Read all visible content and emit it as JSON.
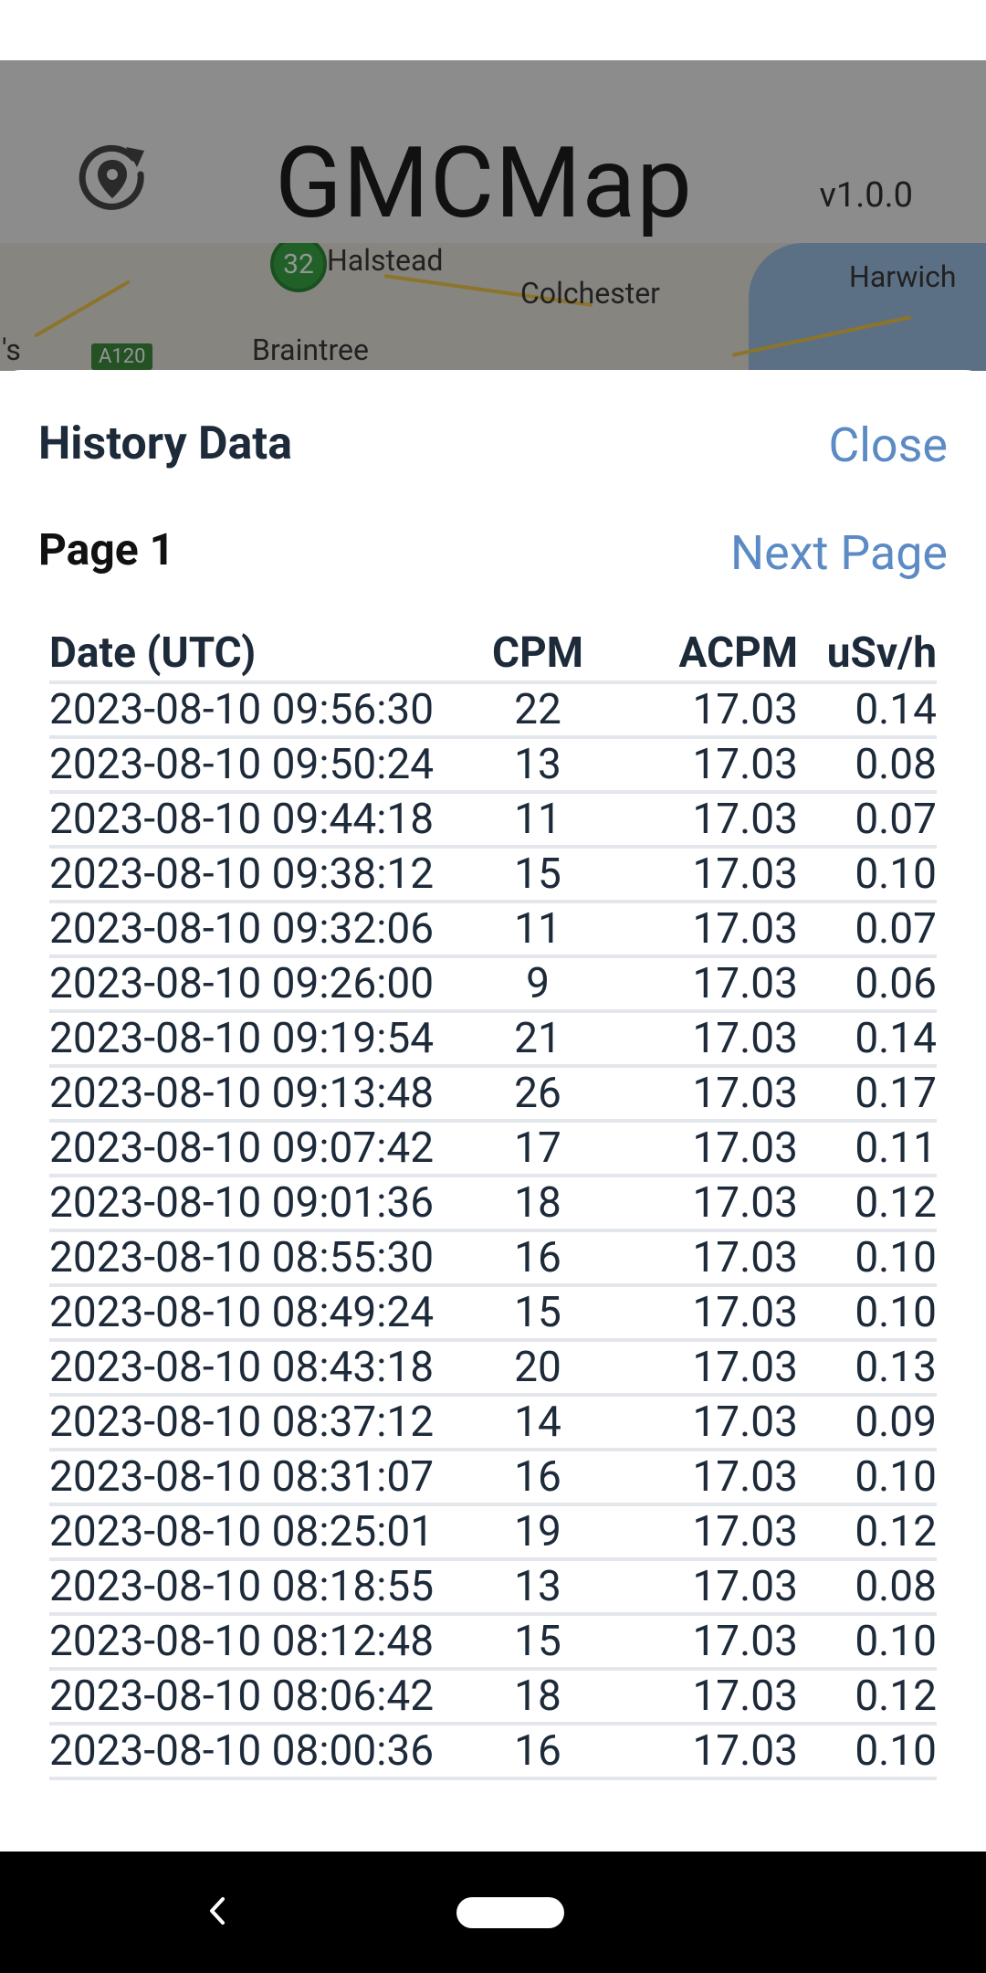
{
  "header": {
    "title": "GMCMap",
    "version": "v1.0.0",
    "refresh_icon": "refresh-location-icon"
  },
  "map": {
    "labels": [
      "Halstead",
      "Colchester",
      "Harwich",
      "Braintree",
      "'s"
    ],
    "marker_value": "32",
    "road_shield": "A120"
  },
  "sheet": {
    "title": "History Data",
    "close_label": "Close",
    "page_label": "Page 1",
    "next_label": "Next Page",
    "columns": [
      "Date (UTC)",
      "CPM",
      "ACPM",
      "uSv/h"
    ],
    "rows": [
      [
        "2023-08-10 09:56:30",
        "22",
        "17.03",
        "0.14"
      ],
      [
        "2023-08-10 09:50:24",
        "13",
        "17.03",
        "0.08"
      ],
      [
        "2023-08-10 09:44:18",
        "11",
        "17.03",
        "0.07"
      ],
      [
        "2023-08-10 09:38:12",
        "15",
        "17.03",
        "0.10"
      ],
      [
        "2023-08-10 09:32:06",
        "11",
        "17.03",
        "0.07"
      ],
      [
        "2023-08-10 09:26:00",
        "9",
        "17.03",
        "0.06"
      ],
      [
        "2023-08-10 09:19:54",
        "21",
        "17.03",
        "0.14"
      ],
      [
        "2023-08-10 09:13:48",
        "26",
        "17.03",
        "0.17"
      ],
      [
        "2023-08-10 09:07:42",
        "17",
        "17.03",
        "0.11"
      ],
      [
        "2023-08-10 09:01:36",
        "18",
        "17.03",
        "0.12"
      ],
      [
        "2023-08-10 08:55:30",
        "16",
        "17.03",
        "0.10"
      ],
      [
        "2023-08-10 08:49:24",
        "15",
        "17.03",
        "0.10"
      ],
      [
        "2023-08-10 08:43:18",
        "20",
        "17.03",
        "0.13"
      ],
      [
        "2023-08-10 08:37:12",
        "14",
        "17.03",
        "0.09"
      ],
      [
        "2023-08-10 08:31:07",
        "16",
        "17.03",
        "0.10"
      ],
      [
        "2023-08-10 08:25:01",
        "19",
        "17.03",
        "0.12"
      ],
      [
        "2023-08-10 08:18:55",
        "13",
        "17.03",
        "0.08"
      ],
      [
        "2023-08-10 08:12:48",
        "15",
        "17.03",
        "0.10"
      ],
      [
        "2023-08-10 08:06:42",
        "18",
        "17.03",
        "0.12"
      ],
      [
        "2023-08-10 08:00:36",
        "16",
        "17.03",
        "0.10"
      ]
    ]
  },
  "nav": {
    "back_icon": "back-chevron-icon",
    "home_icon": "home-pill-icon"
  },
  "colors": {
    "accent": "#5b8ac4",
    "text": "#1d2a3a",
    "marker": "#3aa845"
  }
}
